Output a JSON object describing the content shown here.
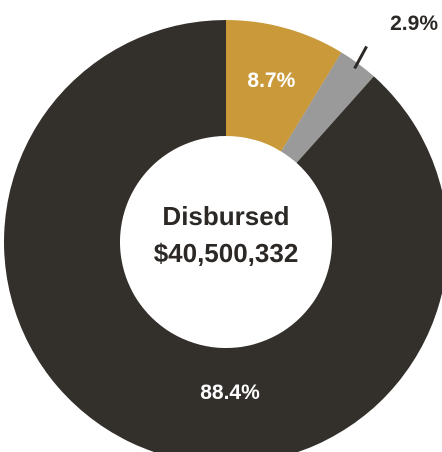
{
  "chart_data": {
    "type": "pie",
    "donut": true,
    "center_label": "Disbursed",
    "center_value": "$40,500,332",
    "slices": [
      {
        "value": 8.7,
        "label": "8.7%",
        "color": "#c9993a",
        "label_color": "#ffffff",
        "label_position": "inside"
      },
      {
        "value": 2.9,
        "label": "2.9%",
        "color": "#9a9a9a",
        "label_color": "#2b2826",
        "label_position": "outside"
      },
      {
        "value": 88.4,
        "label": "88.4%",
        "color": "#332f2b",
        "label_color": "#ffffff",
        "label_position": "inside"
      }
    ]
  }
}
